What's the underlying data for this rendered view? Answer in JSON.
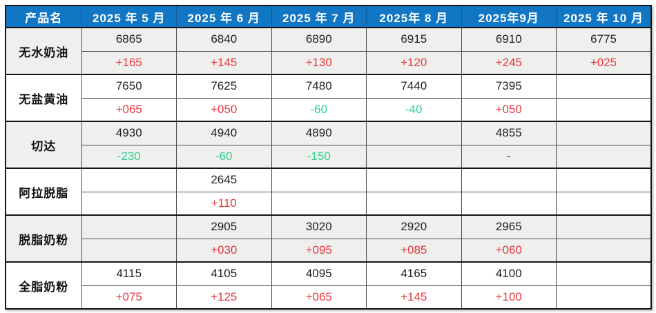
{
  "chart_data": {
    "type": "table",
    "title": "",
    "columns": [
      "产品名",
      "2025 年 5 月",
      "2025 年 6 月",
      "2025 年 7 月",
      "2025年 8 月",
      "2025年9月",
      "2025 年 10 月"
    ],
    "row_structure": "each product has a price row and a month-over-month change row; trend up=red, down=green",
    "rows": [
      {
        "name": "无水奶油",
        "prices": [
          "6865",
          "6840",
          "6890",
          "6915",
          "6910",
          "6775"
        ],
        "changes": [
          "+165",
          "+145",
          "+130",
          "+120",
          "+245",
          "+025"
        ],
        "trends": [
          "up",
          "up",
          "up",
          "up",
          "up",
          "up"
        ]
      },
      {
        "name": "无盐黄油",
        "prices": [
          "7650",
          "7625",
          "7480",
          "7440",
          "7395",
          ""
        ],
        "changes": [
          "+065",
          "+050",
          "-60",
          "-40",
          "+050",
          ""
        ],
        "trends": [
          "up",
          "up",
          "down",
          "down",
          "up",
          "none"
        ]
      },
      {
        "name": "切达",
        "prices": [
          "4930",
          "4940",
          "4890",
          "",
          "4855",
          ""
        ],
        "changes": [
          "-230",
          "-60",
          "-150",
          "",
          "-",
          ""
        ],
        "trends": [
          "down",
          "down",
          "down",
          "none",
          "flat",
          "none"
        ]
      },
      {
        "name": "阿拉脱脂",
        "prices": [
          "",
          "2645",
          "",
          "",
          "",
          ""
        ],
        "changes": [
          "",
          "+110",
          "",
          "",
          "",
          ""
        ],
        "trends": [
          "none",
          "up",
          "none",
          "none",
          "none",
          "none"
        ]
      },
      {
        "name": "脱脂奶粉",
        "prices": [
          "",
          "2905",
          "3020",
          "2920",
          "2965",
          ""
        ],
        "changes": [
          "",
          "+030",
          "+095",
          "+085",
          "+060",
          ""
        ],
        "trends": [
          "none",
          "up",
          "up",
          "up",
          "up",
          "none"
        ]
      },
      {
        "name": "全脂奶粉",
        "prices": [
          "4115",
          "4105",
          "4095",
          "4165",
          "4100",
          ""
        ],
        "changes": [
          "+075",
          "+125",
          "+065",
          "+145",
          "+100",
          ""
        ],
        "trends": [
          "up",
          "up",
          "up",
          "up",
          "up",
          "none"
        ]
      }
    ]
  },
  "colors": {
    "header_bg": "#1176c4",
    "header_text": "#ffffff",
    "up_red": "#e8383d",
    "down_green": "#2fcf92",
    "band_gray": "#efefee",
    "border_dark": "#141414"
  }
}
